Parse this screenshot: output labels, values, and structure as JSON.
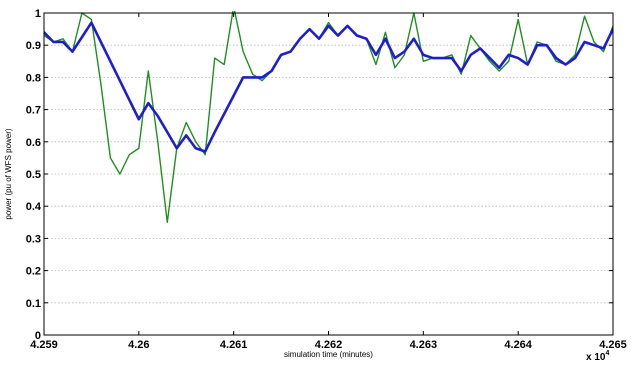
{
  "chart_data": {
    "type": "line",
    "title": "",
    "xlabel": "simulation time (minutes)",
    "ylabel": "power (pu of WFS power)",
    "x_multiplier_label": "x 10",
    "x_multiplier_exponent": "4",
    "xlim": [
      42590,
      42650
    ],
    "ylim": [
      0,
      1
    ],
    "x_ticks": [
      42590,
      42600,
      42610,
      42620,
      42630,
      42640,
      42650
    ],
    "x_tick_labels": [
      "4.259",
      "4.26",
      "4.261",
      "4.262",
      "4.263",
      "4.264",
      "4.265"
    ],
    "y_ticks": [
      0,
      0.1,
      0.2,
      0.3,
      0.4,
      0.5,
      0.6,
      0.7,
      0.8,
      0.9,
      1
    ],
    "y_tick_labels": [
      "0",
      "0.1",
      "0.2",
      "0.3",
      "0.4",
      "0.5",
      "0.6",
      "0.7",
      "0.8",
      "0.9",
      "1"
    ],
    "grid": "horizontal dotted",
    "series": [
      {
        "color": "#1f8f1f",
        "x": [
          42590,
          42591,
          42592,
          42593,
          42594,
          42595,
          42596,
          42597,
          42598,
          42599,
          42600,
          42601,
          42602,
          42603,
          42604,
          42605,
          42606,
          42607,
          42608,
          42609,
          42610,
          42611,
          42612,
          42613,
          42614,
          42615,
          42616,
          42617,
          42618,
          42619,
          42620,
          42621,
          42622,
          42623,
          42624,
          42625,
          42626,
          42627,
          42628,
          42629,
          42630,
          42631,
          42632,
          42633,
          42634,
          42635,
          42636,
          42637,
          42638,
          42639,
          42640,
          42641,
          42642,
          42643,
          42644,
          42645,
          42646,
          42647,
          42648,
          42649,
          42650
        ],
        "y": [
          0.93,
          0.91,
          0.92,
          0.88,
          1.0,
          0.98,
          0.78,
          0.55,
          0.5,
          0.56,
          0.58,
          0.82,
          0.6,
          0.35,
          0.58,
          0.66,
          0.6,
          0.56,
          0.86,
          0.84,
          1.02,
          0.88,
          0.81,
          0.79,
          0.82,
          0.87,
          0.88,
          0.92,
          0.95,
          0.92,
          0.97,
          0.93,
          0.96,
          0.93,
          0.92,
          0.84,
          0.94,
          0.83,
          0.87,
          1.0,
          0.85,
          0.86,
          0.86,
          0.87,
          0.81,
          0.93,
          0.89,
          0.85,
          0.82,
          0.85,
          0.98,
          0.84,
          0.91,
          0.9,
          0.85,
          0.84,
          0.87,
          0.99,
          0.91,
          0.88,
          0.96
        ]
      },
      {
        "color": "#1e1ecf",
        "x": [
          42590,
          42591,
          42592,
          42593,
          42595,
          42600,
          42601,
          42602,
          42604,
          42605,
          42606,
          42607,
          42608,
          42611,
          42612,
          42613,
          42614,
          42615,
          42616,
          42617,
          42618,
          42619,
          42620,
          42621,
          42622,
          42623,
          42624,
          42625,
          42626,
          42627,
          42628,
          42629,
          42630,
          42631,
          42632,
          42633,
          42634,
          42635,
          42636,
          42637,
          42638,
          42639,
          42640,
          42641,
          42642,
          42643,
          42644,
          42645,
          42646,
          42647,
          42648,
          42649,
          42650
        ],
        "y": [
          0.94,
          0.91,
          0.91,
          0.88,
          0.97,
          0.67,
          0.72,
          0.68,
          0.58,
          0.62,
          0.58,
          0.57,
          0.63,
          0.8,
          0.8,
          0.8,
          0.82,
          0.87,
          0.88,
          0.92,
          0.95,
          0.92,
          0.96,
          0.93,
          0.96,
          0.93,
          0.92,
          0.87,
          0.92,
          0.86,
          0.88,
          0.92,
          0.87,
          0.86,
          0.86,
          0.86,
          0.82,
          0.87,
          0.89,
          0.86,
          0.83,
          0.87,
          0.86,
          0.84,
          0.9,
          0.9,
          0.86,
          0.84,
          0.86,
          0.91,
          0.9,
          0.89,
          0.95
        ]
      }
    ]
  }
}
